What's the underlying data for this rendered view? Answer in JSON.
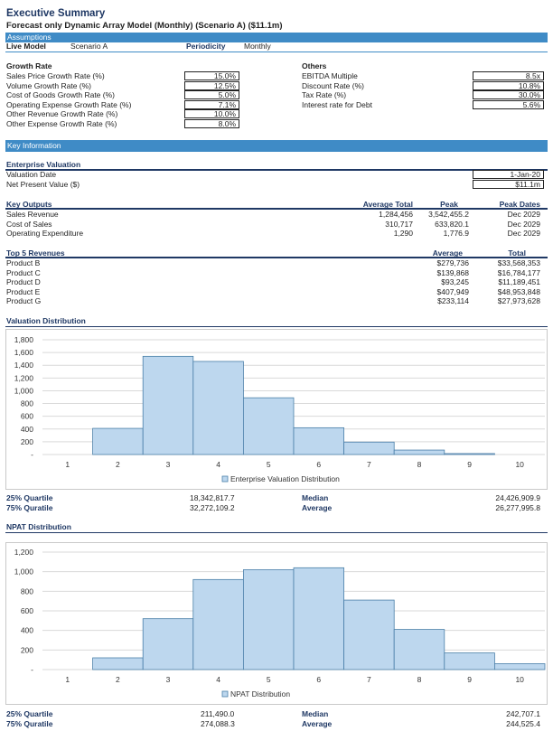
{
  "header": {
    "title": "Executive Summary",
    "subtitle": "Forecast only Dynamic Array Model (Monthly) (Scenario A) ($11.1m)"
  },
  "assumptions": {
    "section_label": "Assumptions",
    "live_model_label": "Live Model",
    "live_model_value": "Scenario A",
    "periodicity_label": "Periodicity",
    "periodicity_value": "Monthly",
    "growth_rate": {
      "heading": "Growth Rate",
      "items": [
        {
          "label": "Sales Price Growth Rate (%)",
          "value": "15.0%"
        },
        {
          "label": "Volume Growth Rate (%)",
          "value": "12.5%"
        },
        {
          "label": "Cost of Goods Growth Rate (%)",
          "value": "5.0%"
        },
        {
          "label": "Operating Expense Growth Rate (%)",
          "value": "7.1%"
        },
        {
          "label": "Other Revenue Growth Rate (%)",
          "value": "10.0%"
        },
        {
          "label": "Other Expense Growth Rate (%)",
          "value": "8.0%"
        }
      ]
    },
    "others": {
      "heading": "Others",
      "items": [
        {
          "label": "EBITDA Multiple",
          "value": "8.5x"
        },
        {
          "label": "Discount Rate (%)",
          "value": "10.8%"
        },
        {
          "label": "Tax Rate (%)",
          "value": "30.0%"
        },
        {
          "label": "Interest rate for Debt",
          "value": "5.6%"
        }
      ]
    }
  },
  "key_information": {
    "section_label": "Key Information",
    "enterprise_valuation": {
      "heading": "Enterprise Valuation",
      "valuation_date_label": "Valuation Date",
      "valuation_date_value": "1-Jan-20",
      "npv_label": "Net Present Value ($)",
      "npv_value": "$11.1m"
    },
    "key_outputs": {
      "heading": "Key Outputs",
      "col_avg": "Average Total",
      "col_peak": "Peak",
      "col_dates": "Peak Dates",
      "rows": [
        {
          "label": "Sales Revenue",
          "avg": "1,284,456",
          "peak": "3,542,455.2",
          "date": "Dec 2029"
        },
        {
          "label": "Cost of Sales",
          "avg": "310,717",
          "peak": "633,820.1",
          "date": "Dec 2029"
        },
        {
          "label": "Operating Expenditure",
          "avg": "1,290",
          "peak": "1,776.9",
          "date": "Dec 2029"
        }
      ]
    },
    "top_revenues": {
      "heading": "Top 5 Revenues",
      "col_avg": "Average",
      "col_total": "Total",
      "rows": [
        {
          "label": "Product B",
          "avg": "$279,736",
          "total": "$33,568,353"
        },
        {
          "label": "Product C",
          "avg": "$139,868",
          "total": "$16,784,177"
        },
        {
          "label": "Product D",
          "avg": "$93,245",
          "total": "$11,189,451"
        },
        {
          "label": "Product E",
          "avg": "$407,949",
          "total": "$48,953,848"
        },
        {
          "label": "Product G",
          "avg": "$233,114",
          "total": "$27,973,628"
        }
      ]
    }
  },
  "valuation_distribution": {
    "heading": "Valuation Distribution",
    "q25_label": "25% Quartile",
    "q25_value": "18,342,817.7",
    "q75_label": "75% Quratile",
    "q75_value": "32,272,109.2",
    "median_label": "Median",
    "median_value": "24,426,909.9",
    "average_label": "Average",
    "average_value": "26,277,995.8"
  },
  "npat_distribution": {
    "heading": "NPAT Distribution",
    "q25_label": "25% Quartile",
    "q25_value": "211,490.0",
    "q75_label": "75% Quratile",
    "q75_value": "274,088.3",
    "median_label": "Median",
    "median_value": "242,707.1",
    "average_label": "Average",
    "average_value": "244,525.4"
  },
  "chart_data": [
    {
      "type": "bar",
      "categories": [
        "1",
        "2",
        "3",
        "4",
        "5",
        "6",
        "7",
        "8",
        "9",
        "10"
      ],
      "series": [
        {
          "name": "Enterprise Valuation Distribution",
          "values": [
            0,
            410,
            1540,
            1460,
            890,
            420,
            195,
            70,
            15,
            0
          ]
        }
      ],
      "yticks": [
        "-",
        "200",
        "400",
        "600",
        "800",
        "1,000",
        "1,200",
        "1,400",
        "1,600",
        "1,800"
      ],
      "ylim": [
        0,
        1800
      ],
      "legend": "bottom",
      "color": "#bdd7ee"
    },
    {
      "type": "bar",
      "categories": [
        "1",
        "2",
        "3",
        "4",
        "5",
        "6",
        "7",
        "8",
        "9",
        "10"
      ],
      "series": [
        {
          "name": "NPAT Distribution",
          "values": [
            0,
            120,
            520,
            920,
            1020,
            1040,
            710,
            410,
            170,
            60
          ]
        }
      ],
      "yticks": [
        "-",
        "200",
        "400",
        "600",
        "800",
        "1,000",
        "1,200"
      ],
      "ylim": [
        0,
        1200
      ],
      "legend": "bottom",
      "color": "#bdd7ee"
    }
  ]
}
